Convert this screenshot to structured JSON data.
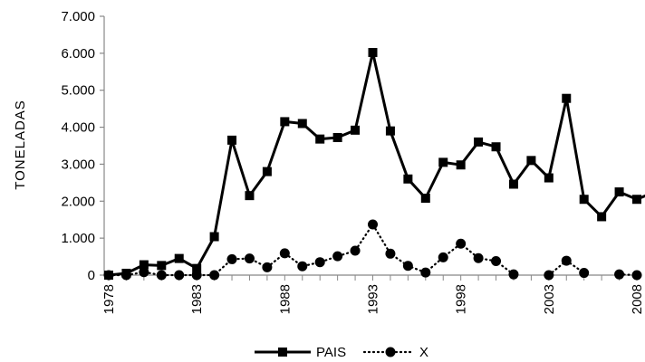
{
  "chart_data": {
    "type": "line",
    "title": "",
    "xlabel": "",
    "ylabel": "TONELADAS",
    "x": [
      1978,
      1979,
      1980,
      1981,
      1982,
      1983,
      1984,
      1985,
      1986,
      1987,
      1988,
      1989,
      1990,
      1991,
      1992,
      1993,
      1994,
      1995,
      1996,
      1997,
      1998,
      1999,
      2000,
      2001,
      2002,
      2003,
      2004,
      2005,
      2006,
      2007,
      2008,
      2009
    ],
    "x_tick_labels": [
      "1978",
      "1983",
      "1988",
      "1993",
      "1998",
      "2003",
      "2008"
    ],
    "x_tick_values": [
      1978,
      1983,
      1988,
      1993,
      1998,
      2003,
      2008
    ],
    "ylim": [
      0,
      7000
    ],
    "y_tick_values": [
      0,
      1000,
      2000,
      3000,
      4000,
      5000,
      6000,
      7000
    ],
    "y_tick_labels": [
      "0",
      "1.000",
      "2.000",
      "3.000",
      "4.000",
      "5.000",
      "6.000",
      "7.000"
    ],
    "grid": false,
    "legend_position": "bottom",
    "series": [
      {
        "name": "PAIS",
        "style": "solid",
        "marker": "square",
        "color": "#000000",
        "values": [
          0,
          50,
          280,
          260,
          450,
          180,
          1040,
          3650,
          2150,
          2800,
          4150,
          4100,
          3680,
          3720,
          3920,
          6020,
          3900,
          2600,
          2080,
          3050,
          2980,
          3600,
          3470,
          2460,
          3100,
          2630,
          4780,
          2050,
          1580,
          2250,
          2050,
          2250
        ]
      },
      {
        "name": "X",
        "style": "dotted",
        "marker": "circle",
        "color": "#000000",
        "values": [
          0,
          0,
          80,
          0,
          0,
          0,
          0,
          430,
          450,
          210,
          590,
          240,
          350,
          510,
          660,
          1370,
          580,
          250,
          70,
          480,
          850,
          460,
          380,
          20,
          null,
          0,
          390,
          60,
          null,
          20,
          0,
          null
        ]
      }
    ]
  }
}
